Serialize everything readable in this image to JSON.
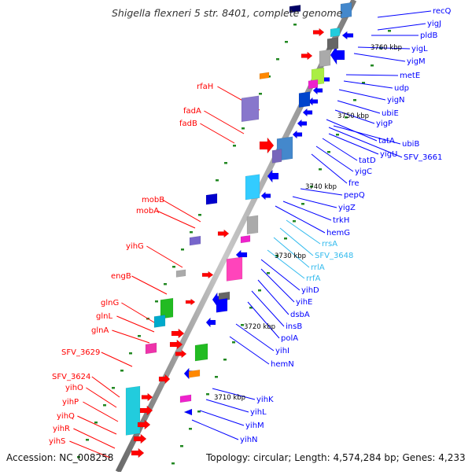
{
  "title": "Shigella flexneri 5 str. 8401, complete genome",
  "footer": {
    "accession": "Accession: NC_008258",
    "summary": "Topology: circular; Length: 4,574,284 bp; Genes: 4,233"
  },
  "kbp_marks": [
    "3760 kbp",
    "3750 kbp",
    "3740 kbp",
    "3730 kbp",
    "3720 kbp",
    "3710 kbp"
  ],
  "left_labels": [
    "rfaH",
    "fadA",
    "fadB",
    "mobB",
    "mobA",
    "yihG",
    "engB",
    "glnG",
    "glnL",
    "glnA",
    "SFV_3629",
    "SFV_3624",
    "yihO",
    "yihP",
    "yihQ",
    "yihR",
    "yihS"
  ],
  "right_labels": [
    "recQ",
    "yigJ",
    "pldB",
    "yigL",
    "yigM",
    "metE",
    "udp",
    "yigN",
    "ubiE",
    "yigP",
    "tatA",
    "ubiB",
    "yigU",
    "SFV_3661",
    "tatD",
    "yigC",
    "fre",
    "pepQ",
    "yigZ",
    "trkH",
    "hemG",
    "rrsA",
    "SFV_3648",
    "rrlA",
    "rrfA",
    "yihD",
    "yihE",
    "dsbA",
    "insB",
    "polA",
    "yihI",
    "hemN",
    "yihK",
    "yihL",
    "yihM",
    "yihN"
  ],
  "colors": {
    "forward_gene": "#ff0000",
    "reverse_gene": "#0000ff",
    "rna_label": "#33bbee",
    "backbone": "#9a9a9a",
    "dot": "#228822"
  }
}
